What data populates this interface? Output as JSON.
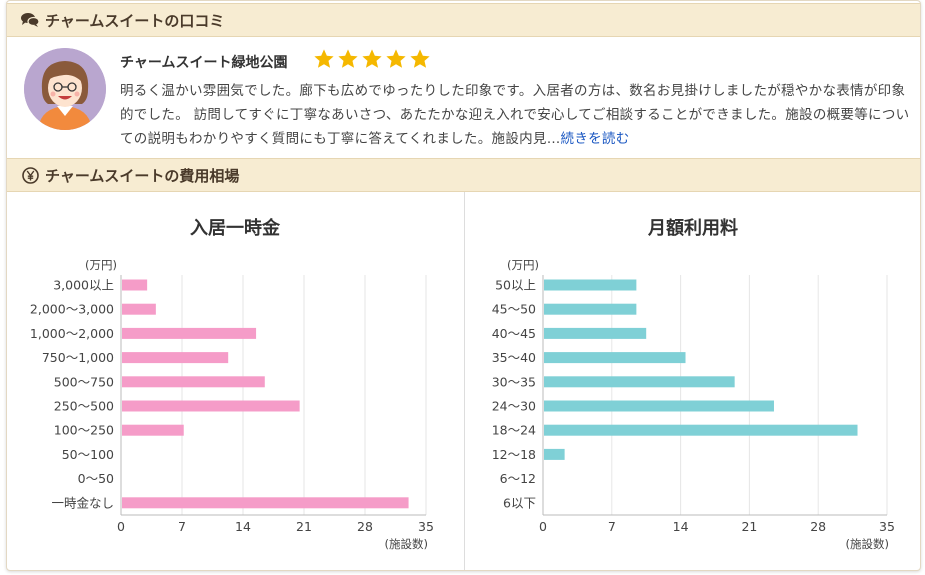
{
  "review_section": {
    "title": "チャームスイートの口コミ",
    "facility_name": "チャームスイート緑地公園",
    "rating": 5,
    "text": "明るく温かい雰囲気でした。廊下も広めでゆったりした印象です。入居者の方は、数名お見掛けしましたが穏やかな表情が印象的でした。 訪問してすぐに丁寧なあいさつ、あたたかな迎え入れで安心してご相談することができました。施設の概要等についての説明もわかりやすく質問にも丁寧に答えてくれました。施設内見…",
    "more_link": "続きを読む"
  },
  "cost_section": {
    "title": "チャームスイートの費用相場"
  },
  "colors": {
    "pink": "#f59cc8",
    "teal": "#7fd0d6",
    "header_bg": "#f7ecd2",
    "star": "#f5b800",
    "link": "#1a57c2"
  },
  "chart_data": [
    {
      "type": "bar",
      "orientation": "horizontal",
      "title": "入居一時金",
      "y_unit_label": "(万円)",
      "x_unit_label": "(施設数)",
      "categories": [
        "3,000以上",
        "2,000〜3,000",
        "1,000〜2,000",
        "750〜1,000",
        "500〜750",
        "250〜500",
        "100〜250",
        "50〜100",
        "0〜50",
        "一時金なし"
      ],
      "values": [
        3,
        4,
        15.5,
        12.3,
        16.5,
        20.5,
        7.2,
        0,
        0,
        33
      ],
      "xlim": [
        0,
        35
      ],
      "xticks": [
        0,
        7,
        14,
        21,
        28,
        35
      ],
      "color": "#f59cc8",
      "grid": true
    },
    {
      "type": "bar",
      "orientation": "horizontal",
      "title": "月額利用料",
      "y_unit_label": "(万円)",
      "x_unit_label": "(施設数)",
      "categories": [
        "50以上",
        "45〜50",
        "40〜45",
        "35〜40",
        "30〜35",
        "24〜30",
        "18〜24",
        "12〜18",
        "6〜12",
        "6以下"
      ],
      "values": [
        9.5,
        9.5,
        10.5,
        14.5,
        19.5,
        23.5,
        32,
        2.2,
        0,
        0
      ],
      "xlim": [
        0,
        35
      ],
      "xticks": [
        0,
        7,
        14,
        21,
        28,
        35
      ],
      "color": "#7fd0d6",
      "grid": true
    }
  ]
}
